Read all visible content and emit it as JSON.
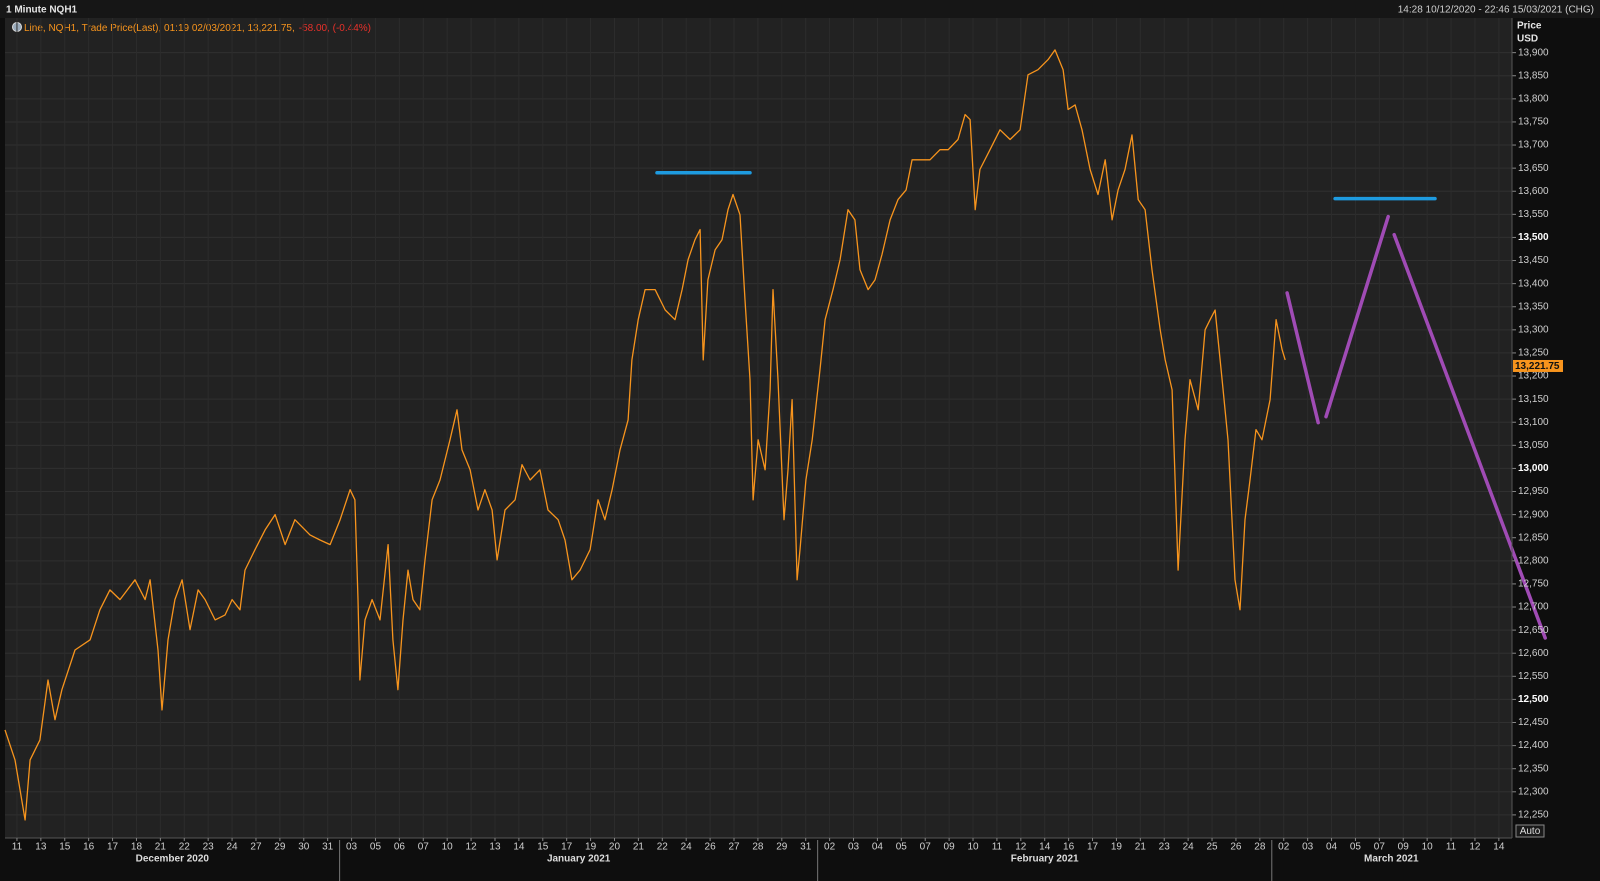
{
  "chart_data": {
    "type": "line",
    "title": "1 Minute NQH1",
    "time_range": "14:28 10/12/2020 - 22:46 15/03/2021 (CHG)",
    "legend": [
      {
        "text": "Line, NQH1, Trade Price(Last), 01:19 02/03/2021, 13,221.75,",
        "color": "#f7941d"
      },
      {
        "text": "-58.00, (-0.44%)",
        "color": "#e8312a"
      }
    ],
    "y_label": [
      "Price",
      "USD"
    ],
    "auto_button": "Auto",
    "grid": true,
    "xlim": [
      0,
      63.05
    ],
    "ylim": [
      12200,
      13975
    ],
    "yticks": [
      {
        "value": 12250,
        "label": "12,250"
      },
      {
        "value": 12300,
        "label": "12,300"
      },
      {
        "value": 12350,
        "label": "12,350"
      },
      {
        "value": 12400,
        "label": "12,400"
      },
      {
        "value": 12450,
        "label": "12,450"
      },
      {
        "value": 12500,
        "label": "12,500"
      },
      {
        "value": 12550,
        "label": "12,550"
      },
      {
        "value": 12600,
        "label": "12,600"
      },
      {
        "value": 12650,
        "label": "12,650"
      },
      {
        "value": 12700,
        "label": "12,700"
      },
      {
        "value": 12750,
        "label": "12,750"
      },
      {
        "value": 12800,
        "label": "12,800"
      },
      {
        "value": 12850,
        "label": "12,850"
      },
      {
        "value": 12900,
        "label": "12,900"
      },
      {
        "value": 12950,
        "label": "12,950"
      },
      {
        "value": 13000,
        "label": "13,000"
      },
      {
        "value": 13050,
        "label": "13,050"
      },
      {
        "value": 13100,
        "label": "13,100"
      },
      {
        "value": 13150,
        "label": "13,150"
      },
      {
        "value": 13200,
        "label": "13,200"
      },
      {
        "value": 13250,
        "label": "13,250"
      },
      {
        "value": 13300,
        "label": "13,300"
      },
      {
        "value": 13350,
        "label": "13,350"
      },
      {
        "value": 13400,
        "label": "13,400"
      },
      {
        "value": 13450,
        "label": "13,450"
      },
      {
        "value": 13500,
        "label": "13,500"
      },
      {
        "value": 13550,
        "label": "13,550"
      },
      {
        "value": 13600,
        "label": "13,600"
      },
      {
        "value": 13650,
        "label": "13,650"
      },
      {
        "value": 13700,
        "label": "13,700"
      },
      {
        "value": 13750,
        "label": "13,750"
      },
      {
        "value": 13800,
        "label": "13,800"
      },
      {
        "value": 13850,
        "label": "13,850"
      },
      {
        "value": 13900,
        "label": "13,900"
      }
    ],
    "x_groups": [
      {
        "label": "December 2020",
        "ticks": [
          {
            "value": 0.5,
            "label": "11"
          },
          {
            "value": 1.5,
            "label": "13"
          },
          {
            "value": 2.5,
            "label": "15"
          },
          {
            "value": 3.5,
            "label": "16"
          },
          {
            "value": 4.5,
            "label": "17"
          },
          {
            "value": 5.5,
            "label": "18"
          },
          {
            "value": 6.5,
            "label": "21"
          },
          {
            "value": 7.5,
            "label": "22"
          },
          {
            "value": 8.5,
            "label": "23"
          },
          {
            "value": 9.5,
            "label": "24"
          },
          {
            "value": 10.5,
            "label": "27"
          },
          {
            "value": 11.5,
            "label": "29"
          },
          {
            "value": 12.5,
            "label": "30"
          },
          {
            "value": 13.5,
            "label": "31"
          }
        ]
      },
      {
        "label": "January 2021",
        "ticks": [
          {
            "value": 14.5,
            "label": "03"
          },
          {
            "value": 15.5,
            "label": "05"
          },
          {
            "value": 16.5,
            "label": "06"
          },
          {
            "value": 17.5,
            "label": "07"
          },
          {
            "value": 18.5,
            "label": "10"
          },
          {
            "value": 19.5,
            "label": "12"
          },
          {
            "value": 20.5,
            "label": "13"
          },
          {
            "value": 21.5,
            "label": "14"
          },
          {
            "value": 22.5,
            "label": "15"
          },
          {
            "value": 23.5,
            "label": "17"
          },
          {
            "value": 24.5,
            "label": "19"
          },
          {
            "value": 25.5,
            "label": "20"
          },
          {
            "value": 26.5,
            "label": "21"
          },
          {
            "value": 27.5,
            "label": "22"
          },
          {
            "value": 28.5,
            "label": "24"
          },
          {
            "value": 29.5,
            "label": "26"
          },
          {
            "value": 30.5,
            "label": "27"
          },
          {
            "value": 31.5,
            "label": "28"
          },
          {
            "value": 32.5,
            "label": "29"
          },
          {
            "value": 33.5,
            "label": "31"
          }
        ]
      },
      {
        "label": "February 2021",
        "ticks": [
          {
            "value": 34.5,
            "label": "02"
          },
          {
            "value": 35.5,
            "label": "03"
          },
          {
            "value": 36.5,
            "label": "04"
          },
          {
            "value": 37.5,
            "label": "05"
          },
          {
            "value": 38.5,
            "label": "07"
          },
          {
            "value": 39.5,
            "label": "09"
          },
          {
            "value": 40.5,
            "label": "10"
          },
          {
            "value": 41.5,
            "label": "11"
          },
          {
            "value": 42.5,
            "label": "12"
          },
          {
            "value": 43.5,
            "label": "14"
          },
          {
            "value": 44.5,
            "label": "16"
          },
          {
            "value": 45.5,
            "label": "17"
          },
          {
            "value": 46.5,
            "label": "19"
          },
          {
            "value": 47.5,
            "label": "21"
          },
          {
            "value": 48.5,
            "label": "23"
          },
          {
            "value": 49.5,
            "label": "24"
          },
          {
            "value": 50.5,
            "label": "25"
          },
          {
            "value": 51.5,
            "label": "26"
          },
          {
            "value": 52.5,
            "label": "28"
          }
        ]
      },
      {
        "label": "March 2021",
        "ticks": [
          {
            "value": 53.5,
            "label": "02"
          },
          {
            "value": 54.5,
            "label": "03"
          },
          {
            "value": 55.5,
            "label": "04"
          },
          {
            "value": 56.5,
            "label": "05"
          },
          {
            "value": 57.5,
            "label": "07"
          },
          {
            "value": 58.5,
            "label": "09"
          },
          {
            "value": 59.5,
            "label": "10"
          },
          {
            "value": 60.5,
            "label": "11"
          },
          {
            "value": 61.5,
            "label": "12"
          },
          {
            "value": 62.5,
            "label": "14"
          }
        ]
      }
    ],
    "series": [
      {
        "color": "#f7941d",
        "x": [
          0,
          0.42,
          0.84,
          1.05,
          1.46,
          1.8,
          2.09,
          2.38,
          2.93,
          3.56,
          3.97,
          4.39,
          4.81,
          5.44,
          5.86,
          6.07,
          6.4,
          6.57,
          6.82,
          7.11,
          7.41,
          7.74,
          8.08,
          8.37,
          8.79,
          9.21,
          9.5,
          9.83,
          10.04,
          10.46,
          10.88,
          11.3,
          11.72,
          12.13,
          12.76,
          13.18,
          13.6,
          14.02,
          14.44,
          14.64,
          14.77,
          14.85,
          15.06,
          15.36,
          15.69,
          16.03,
          16.23,
          16.44,
          16.65,
          16.86,
          17.07,
          17.36,
          17.57,
          17.87,
          18.2,
          18.62,
          18.91,
          19.12,
          19.46,
          19.79,
          20.08,
          20.38,
          20.59,
          20.92,
          21.34,
          21.63,
          21.97,
          22.38,
          22.72,
          23.14,
          23.43,
          23.72,
          24.06,
          24.48,
          24.81,
          25.1,
          25.4,
          25.73,
          26.07,
          26.23,
          26.49,
          26.78,
          27.2,
          27.62,
          28.03,
          28.33,
          28.58,
          28.87,
          29.08,
          29.21,
          29.41,
          29.71,
          30.0,
          30.25,
          30.46,
          30.75,
          30.96,
          31.17,
          31.3,
          31.51,
          31.8,
          32.01,
          32.13,
          32.34,
          32.59,
          32.76,
          32.93,
          33.14,
          33.26,
          33.51,
          33.77,
          34.1,
          34.31,
          34.64,
          34.94,
          35.27,
          35.56,
          35.77,
          36.11,
          36.4,
          36.69,
          37.03,
          37.36,
          37.7,
          37.95,
          38.28,
          38.7,
          39.12,
          39.46,
          39.87,
          40.17,
          40.38,
          40.59,
          40.79,
          41.21,
          41.63,
          42.05,
          42.47,
          42.8,
          43.22,
          43.64,
          43.93,
          44.27,
          44.48,
          44.77,
          45.06,
          45.4,
          45.73,
          46.03,
          46.32,
          46.57,
          46.86,
          47.15,
          47.41,
          47.7,
          47.99,
          48.33,
          48.54,
          48.83,
          49.08,
          49.37,
          49.58,
          49.92,
          50.21,
          50.42,
          50.63,
          50.92,
          51.17,
          51.46,
          51.67,
          51.88,
          52.09,
          52.34,
          52.59,
          52.93,
          53.18,
          53.43,
          53.56
        ],
        "values": [
          12434,
          12369,
          12239,
          12369,
          12412,
          12542,
          12456,
          12521,
          12607,
          12629,
          12694,
          12737,
          12716,
          12759,
          12716,
          12759,
          12607,
          12477,
          12629,
          12716,
          12759,
          12651,
          12737,
          12716,
          12672,
          12683,
          12716,
          12694,
          12780,
          12824,
          12867,
          12900,
          12835,
          12889,
          12856,
          12845,
          12835,
          12889,
          12954,
          12932,
          12716,
          12542,
          12672,
          12716,
          12672,
          12835,
          12629,
          12521,
          12672,
          12780,
          12716,
          12694,
          12802,
          12932,
          12975,
          13062,
          13127,
          13040,
          12997,
          12910,
          12954,
          12910,
          12802,
          12910,
          12932,
          13008,
          12975,
          12997,
          12910,
          12889,
          12845,
          12759,
          12780,
          12824,
          12932,
          12889,
          12954,
          13040,
          13105,
          13235,
          13322,
          13387,
          13387,
          13343,
          13322,
          13387,
          13452,
          13495,
          13517,
          13235,
          13408,
          13473,
          13495,
          13560,
          13593,
          13549,
          13365,
          13192,
          12932,
          13062,
          12997,
          13170,
          13387,
          13192,
          12889,
          12997,
          13149,
          12759,
          12824,
          12975,
          13062,
          13214,
          13322,
          13387,
          13452,
          13560,
          13538,
          13430,
          13387,
          13408,
          13463,
          13538,
          13582,
          13603,
          13668,
          13668,
          13668,
          13690,
          13690,
          13712,
          13766,
          13755,
          13560,
          13647,
          13690,
          13733,
          13712,
          13733,
          13852,
          13863,
          13885,
          13906,
          13863,
          13777,
          13787,
          13733,
          13647,
          13593,
          13668,
          13538,
          13603,
          13647,
          13722,
          13582,
          13560,
          13430,
          13300,
          13235,
          13170,
          12780,
          13062,
          13192,
          13127,
          13300,
          13322,
          13343,
          13192,
          13062,
          12759,
          12694,
          12889,
          12975,
          13084,
          13062,
          13149,
          13322,
          13257,
          13235
        ]
      }
    ],
    "last_price": {
      "value": 13221.75,
      "label": "13,221.75"
    },
    "drawings": [
      {
        "color": "#1e9be0",
        "x": [
          27.28,
          31.17
        ],
        "values": [
          13640,
          13640
        ]
      },
      {
        "color": "#1e9be0",
        "x": [
          55.65,
          59.83
        ],
        "values": [
          13584,
          13584
        ]
      },
      {
        "color": "#a04bb5",
        "x": [
          53.64,
          54.94
        ],
        "values": [
          13380,
          13099
        ]
      },
      {
        "color": "#a04bb5",
        "x": [
          55.27,
          57.87
        ],
        "values": [
          13112,
          13545
        ]
      },
      {
        "color": "#a04bb5",
        "x": [
          58.12,
          64.44
        ],
        "values": [
          13506,
          12633
        ]
      }
    ]
  }
}
